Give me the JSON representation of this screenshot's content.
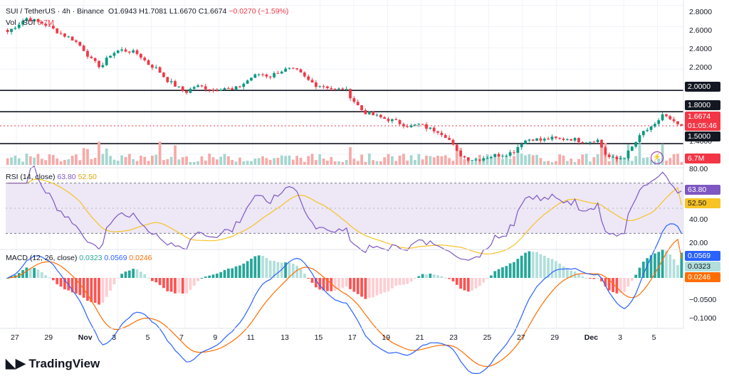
{
  "header": {
    "symbol": "SUI / TetherUS · 4h · Binance",
    "open": "O1.6943",
    "high": "H1.7081",
    "low": "L1.6670",
    "close": "C1.6674",
    "change": "−0.0270 (−1.59%)",
    "volume_label": "Vol · SUI",
    "volume_value": "6.7M"
  },
  "price_axis": [
    "2.8000",
    "2.6000",
    "2.4000",
    "2.2000",
    "2.0000",
    "1.8000",
    "1.6674",
    "1.5000",
    "1.4000"
  ],
  "price_tags": {
    "resistance_high": "2.0000",
    "resistance": "1.8000",
    "last_price": "1.6674",
    "countdown": "01:05:46",
    "support": "1.5000",
    "volume": "6.7M"
  },
  "rsi": {
    "label": "RSI (14, close)",
    "value": "63.80",
    "ma_value": "52.50",
    "axis": [
      "80.00",
      "40.00",
      "20.00"
    ],
    "tag_value": "63.80",
    "tag_ma": "52.50"
  },
  "macd": {
    "label": "MACD (12, 26, close)",
    "hist": "0.0323",
    "macd": "0.0569",
    "signal": "0.0246",
    "axis": [
      "−0.0500",
      "−0.1000"
    ],
    "tag_macd": "0.0569",
    "tag_hist": "0.0323",
    "tag_signal": "0.0246"
  },
  "time_axis": [
    "27",
    "29",
    "Nov",
    "3",
    "5",
    "7",
    "9",
    "11",
    "13",
    "15",
    "17",
    "19",
    "21",
    "23",
    "25",
    "27",
    "29",
    "Dec",
    "3",
    "5"
  ],
  "brand": "TradingView",
  "colors": {
    "up": "#089981",
    "down": "#f23645",
    "rsi_line": "#7e57c2",
    "rsi_ma": "#f7c325",
    "macd_line": "#2962ff",
    "signal_line": "#ff6d00",
    "rsi_band": "#ede7f6"
  },
  "chart_data": {
    "type": "candlestick",
    "symbol": "SUI/USDT",
    "interval": "4h",
    "horizontal_levels": [
      2.0,
      1.8,
      1.5
    ],
    "ylim": [
      1.3,
      2.85
    ],
    "price_path": [
      [
        0,
        2.55
      ],
      [
        2,
        2.68
      ],
      [
        4,
        2.62
      ],
      [
        6,
        2.52
      ],
      [
        7,
        2.48
      ],
      [
        8,
        2.4
      ],
      [
        9,
        2.28
      ],
      [
        10,
        2.22
      ],
      [
        11,
        2.34
      ],
      [
        12,
        2.38
      ],
      [
        13,
        2.37
      ],
      [
        14,
        2.34
      ],
      [
        15,
        2.25
      ],
      [
        16,
        2.2
      ],
      [
        17,
        2.1
      ],
      [
        18,
        2.04
      ],
      [
        19,
        1.98
      ],
      [
        20,
        2.04
      ],
      [
        21,
        2.03
      ],
      [
        22,
        2.0
      ],
      [
        23,
        2.03
      ],
      [
        24,
        2.0
      ],
      [
        25,
        2.05
      ],
      [
        26,
        2.12
      ],
      [
        27,
        2.16
      ],
      [
        28,
        2.13
      ],
      [
        29,
        2.18
      ],
      [
        30,
        2.2
      ],
      [
        31,
        2.18
      ],
      [
        32,
        2.1
      ],
      [
        33,
        2.05
      ],
      [
        34,
        2.04
      ],
      [
        35,
        2.0
      ],
      [
        36,
        2.02
      ],
      [
        37,
        1.9
      ],
      [
        38,
        1.8
      ],
      [
        39,
        1.77
      ],
      [
        40,
        1.74
      ],
      [
        41,
        1.72
      ],
      [
        42,
        1.69
      ],
      [
        43,
        1.66
      ],
      [
        44,
        1.68
      ],
      [
        45,
        1.64
      ],
      [
        46,
        1.62
      ],
      [
        47,
        1.56
      ],
      [
        48,
        1.42
      ],
      [
        49,
        1.36
      ],
      [
        50,
        1.35
      ],
      [
        51,
        1.37
      ],
      [
        52,
        1.39
      ],
      [
        53,
        1.4
      ],
      [
        54,
        1.42
      ],
      [
        55,
        1.52
      ],
      [
        56,
        1.55
      ],
      [
        57,
        1.53
      ],
      [
        58,
        1.55
      ],
      [
        59,
        1.54
      ],
      [
        60,
        1.55
      ],
      [
        61,
        1.53
      ],
      [
        62,
        1.52
      ],
      [
        63,
        1.54
      ],
      [
        64,
        1.38
      ],
      [
        65,
        1.35
      ],
      [
        66,
        1.38
      ],
      [
        67,
        1.5
      ],
      [
        68,
        1.62
      ],
      [
        69,
        1.65
      ],
      [
        70,
        1.78
      ],
      [
        71,
        1.7
      ],
      [
        72,
        1.6674
      ]
    ],
    "volume_last": "6.7M",
    "rsi": {
      "ylim": [
        20,
        80
      ],
      "bands": [
        70,
        30
      ],
      "last": 63.8,
      "ma_last": 52.5
    },
    "macd": {
      "last_macd": 0.0569,
      "last_signal": 0.0246,
      "last_hist": 0.0323
    }
  }
}
